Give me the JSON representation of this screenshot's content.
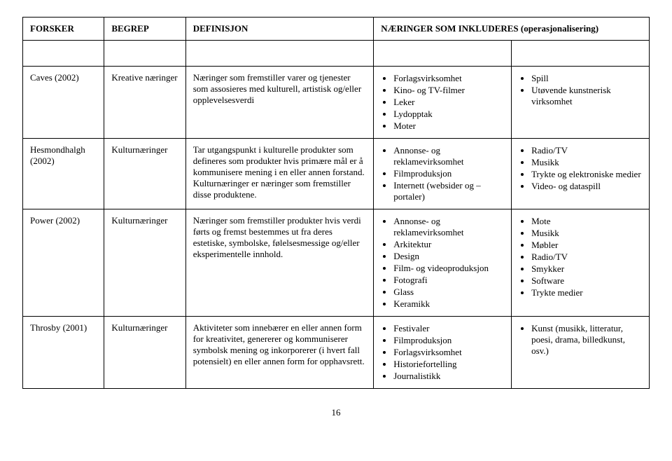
{
  "headers": {
    "forsker": "FORSKER",
    "begrep": "BEGREP",
    "definisjon": "DEFINISJON",
    "naeringer": "NÆRINGER SOM INKLUDERES (operasjonalisering)"
  },
  "rows": [
    {
      "forsker": "Caves (2002)",
      "begrep": "Kreative næringer",
      "definisjon": "Næringer som fremstiller varer og tjenester som assosieres med kulturell, artistisk og/eller opplevelsesverdi",
      "list1": [
        "Forlagsvirksomhet",
        "Kino- og TV-filmer",
        "Leker",
        "Lydopptak",
        "Moter"
      ],
      "list2": [
        "Spill",
        "Utøvende kunstnerisk virksomhet"
      ]
    },
    {
      "forsker": "Hesmondhalgh (2002)",
      "begrep": "Kulturnæringer",
      "definisjon": "Tar utgangspunkt i kulturelle produkter som defineres som produkter hvis primære mål er å kommunisere mening i en eller annen forstand. Kulturnæringer er næringer som fremstiller disse produktene.",
      "list1": [
        "Annonse- og reklamevirksomhet",
        "Filmproduksjon",
        "Internett (websider og – portaler)"
      ],
      "list2": [
        "Radio/TV",
        "Musikk",
        "Trykte og elektroniske medier",
        "Video- og dataspill"
      ]
    },
    {
      "forsker": "Power (2002)",
      "begrep": "Kulturnæringer",
      "definisjon": "Næringer som fremstiller produkter hvis verdi førts og fremst bestemmes ut fra deres estetiske, symbolske, følelsesmessige og/eller eksperimentelle innhold.",
      "list1": [
        "Annonse- og reklamevirksomhet",
        "Arkitektur",
        "Design",
        "Film- og videoproduksjon",
        "Fotografi",
        "Glass",
        "Keramikk"
      ],
      "list2": [
        "Mote",
        "Musikk",
        "Møbler",
        "Radio/TV",
        "Smykker",
        "Software",
        "Trykte medier"
      ]
    },
    {
      "forsker": "Throsby (2001)",
      "begrep": "Kulturnæringer",
      "definisjon": "Aktiviteter som innebærer en eller annen form for kreativitet, genererer og kommuniserer symbolsk mening og inkorporerer (i hvert fall potensielt) en eller annen form for opphavsrett.",
      "list1": [
        "Festivaler",
        "Filmproduksjon",
        "Forlagsvirksomhet",
        "Historiefortelling",
        "Journalistikk"
      ],
      "list2": [
        "Kunst (musikk, litteratur, poesi, drama, billedkunst, osv.)"
      ]
    }
  ],
  "page_number": "16"
}
